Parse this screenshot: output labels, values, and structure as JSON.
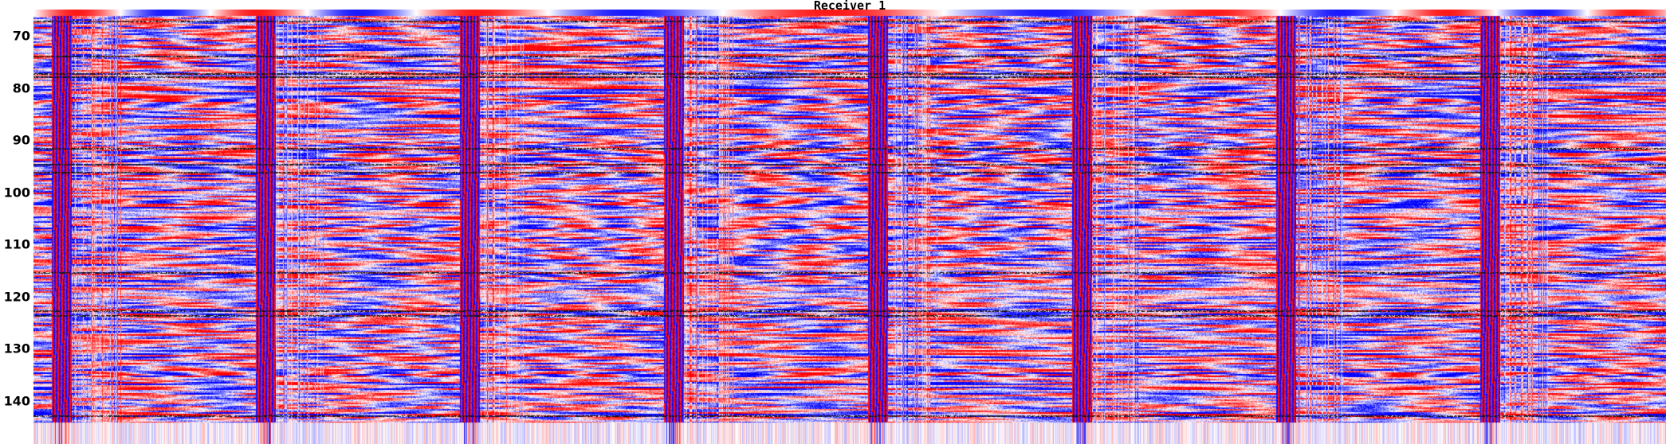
{
  "chart_data": {
    "type": "heatmap",
    "title": "Receiver 1",
    "xlabel": "",
    "ylabel": "",
    "yticks": [
      70,
      80,
      90,
      100,
      110,
      120,
      130,
      140
    ],
    "ylim": [
      66,
      148
    ],
    "y_inverted": true,
    "colormap": {
      "negative": "#0000ff",
      "zero": "#ffffff",
      "positive": "#ff0000"
    },
    "panels": 8,
    "grid": false
  }
}
